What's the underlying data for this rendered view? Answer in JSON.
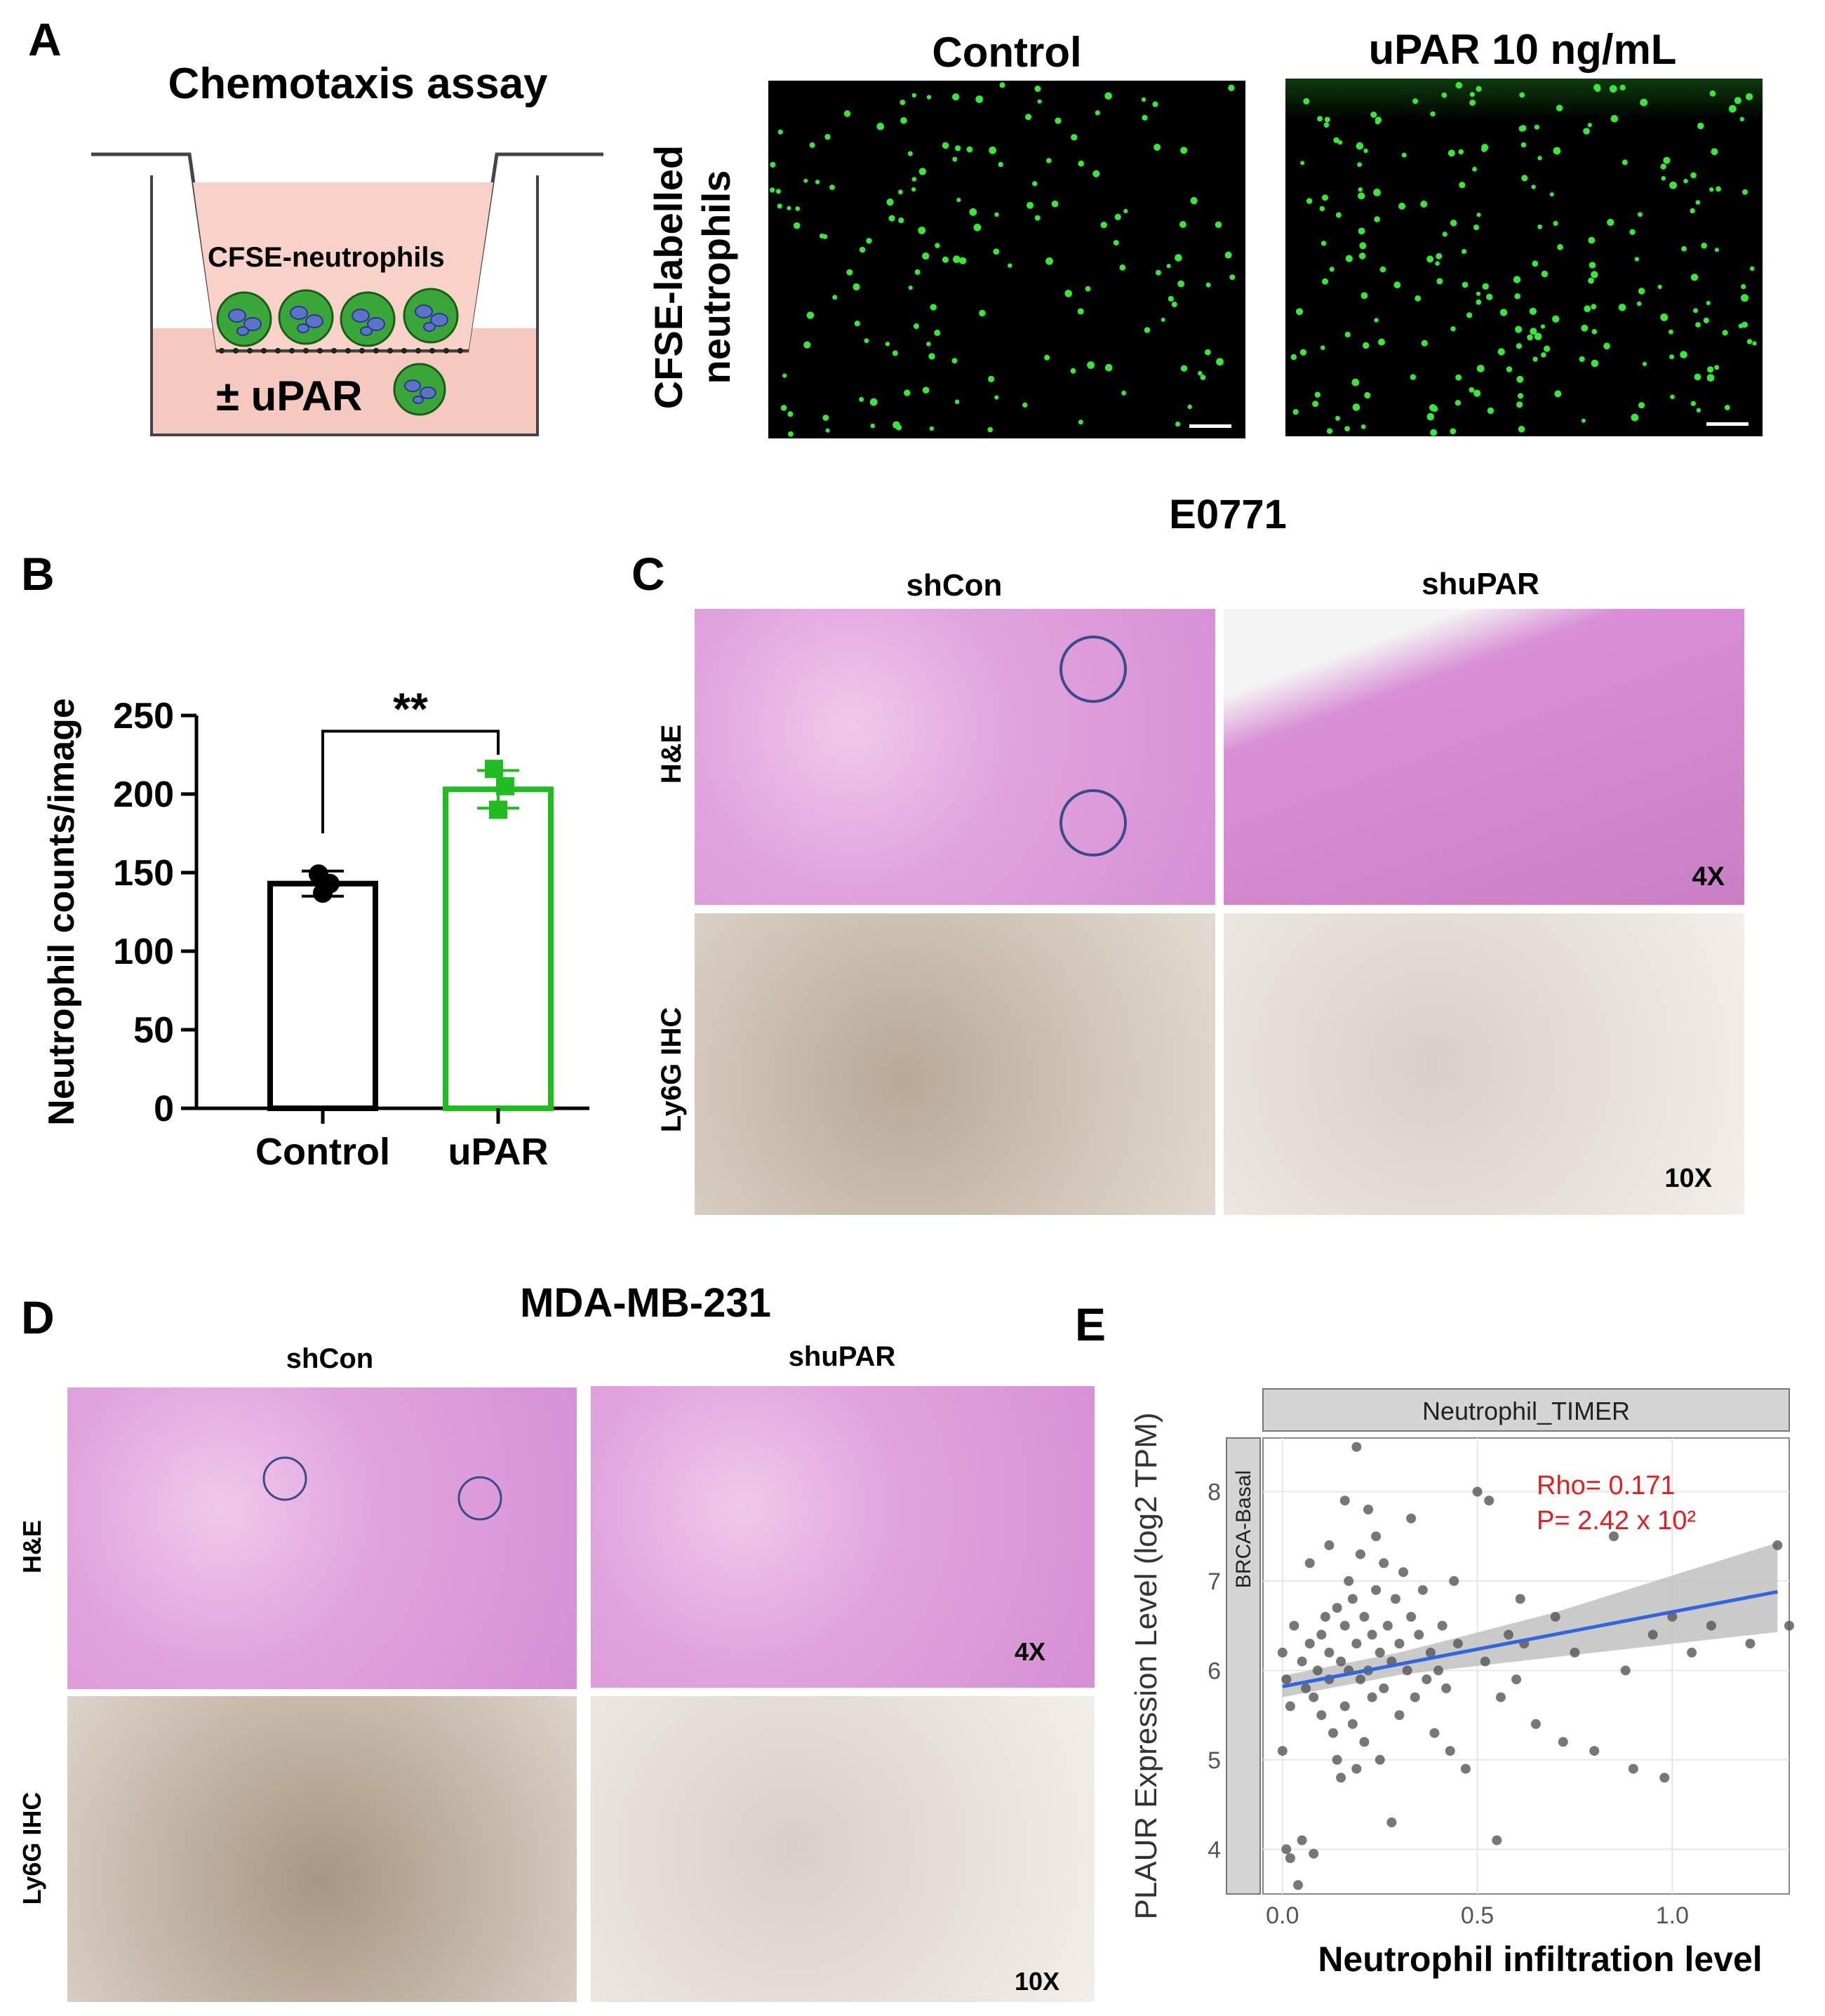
{
  "panels": {
    "A": {
      "label": "A",
      "diagram_title": "Chemotaxis assay",
      "insert_label": "CFSE-neutrophils",
      "chamber_label": "± uPAR",
      "row_label_line1": "CFSE-labelled",
      "row_label_line2": "neutrophils",
      "col_control": "Control",
      "col_upar": "uPAR 10 ng/mL",
      "colors": {
        "cell_fill": "#3aa63a",
        "nucleus": "#5b73c8",
        "chamber": "#f6c9c0",
        "dot": "#39e639"
      }
    },
    "B": {
      "label": "B",
      "significance": "**"
    },
    "C": {
      "label": "C",
      "title": "E0771",
      "col_shcon": "shCon",
      "col_shupar": "shuPAR",
      "row_he": "H&E",
      "row_ihc": "Ly6G IHC",
      "mag_4x": "4X",
      "mag_10x": "10X"
    },
    "D": {
      "label": "D",
      "title": "MDA-MB-231",
      "col_shcon": "shCon",
      "col_shupar": "shuPAR",
      "row_he": "H&E",
      "row_ihc": "Ly6G IHC",
      "mag_4x": "4X",
      "mag_10x": "10X"
    },
    "E": {
      "label": "E",
      "strip_top": "Neutrophil_TIMER",
      "strip_side": "BRCA-Basal",
      "rho_text": "Rho= 0.171",
      "p_text": "P= 2.42 x 10²"
    }
  },
  "chart_data": [
    {
      "type": "bar",
      "categories": [
        "Control",
        "uPAR"
      ],
      "values": [
        143,
        203
      ],
      "error": [
        8,
        12
      ],
      "points": [
        [
          149,
          143,
          137
        ],
        [
          216,
          205,
          190
        ]
      ],
      "ylabel": "Neutrophil counts/image",
      "xlabel": "",
      "ylim": [
        0,
        250
      ],
      "yticks": [
        0,
        50,
        100,
        150,
        200,
        250
      ],
      "colors": [
        "#000000",
        "#22bb22"
      ]
    },
    {
      "type": "scatter",
      "xlabel": "Neutrophil infiltration level",
      "ylabel": "PLAUR Expression Level (log2 TPM)",
      "xlim": [
        -0.05,
        1.3
      ],
      "ylim": [
        3.5,
        8.6
      ],
      "xticks": [
        0.0,
        0.5,
        1.0
      ],
      "xtick_labels": [
        "0.0",
        "0.5",
        "1.0"
      ],
      "yticks": [
        4,
        5,
        6,
        7,
        8
      ],
      "fit": {
        "x": [
          0.0,
          1.27
        ],
        "y": [
          5.82,
          6.88
        ]
      },
      "grid": true,
      "colors": {
        "points": "#555555",
        "fit": "#3366dd",
        "band": "#bdbdbd"
      },
      "points": [
        [
          0.0,
          6.2
        ],
        [
          0.01,
          5.9
        ],
        [
          0.02,
          5.6
        ],
        [
          0.0,
          5.1
        ],
        [
          0.01,
          4.0
        ],
        [
          0.02,
          3.9
        ],
        [
          0.04,
          3.6
        ],
        [
          0.05,
          4.1
        ],
        [
          0.08,
          3.95
        ],
        [
          0.03,
          6.5
        ],
        [
          0.05,
          6.1
        ],
        [
          0.06,
          5.8
        ],
        [
          0.07,
          6.3
        ],
        [
          0.08,
          5.7
        ],
        [
          0.09,
          6.0
        ],
        [
          0.1,
          6.4
        ],
        [
          0.1,
          5.5
        ],
        [
          0.11,
          6.6
        ],
        [
          0.12,
          5.9
        ],
        [
          0.12,
          6.2
        ],
        [
          0.13,
          5.3
        ],
        [
          0.14,
          6.7
        ],
        [
          0.14,
          5.0
        ],
        [
          0.15,
          6.1
        ],
        [
          0.15,
          4.8
        ],
        [
          0.16,
          6.5
        ],
        [
          0.16,
          5.6
        ],
        [
          0.17,
          7.0
        ],
        [
          0.17,
          6.0
        ],
        [
          0.18,
          6.8
        ],
        [
          0.18,
          5.4
        ],
        [
          0.19,
          6.3
        ],
        [
          0.19,
          4.9
        ],
        [
          0.2,
          7.3
        ],
        [
          0.2,
          5.9
        ],
        [
          0.21,
          6.6
        ],
        [
          0.21,
          5.2
        ],
        [
          0.22,
          6.0
        ],
        [
          0.22,
          7.8
        ],
        [
          0.23,
          6.4
        ],
        [
          0.23,
          5.7
        ],
        [
          0.24,
          6.9
        ],
        [
          0.25,
          6.2
        ],
        [
          0.25,
          5.0
        ],
        [
          0.26,
          7.2
        ],
        [
          0.26,
          5.8
        ],
        [
          0.27,
          6.5
        ],
        [
          0.28,
          6.1
        ],
        [
          0.28,
          4.3
        ],
        [
          0.29,
          6.8
        ],
        [
          0.3,
          6.3
        ],
        [
          0.3,
          5.5
        ],
        [
          0.31,
          7.1
        ],
        [
          0.32,
          6.0
        ],
        [
          0.33,
          6.6
        ],
        [
          0.34,
          5.7
        ],
        [
          0.35,
          6.4
        ],
        [
          0.36,
          6.9
        ],
        [
          0.37,
          5.9
        ],
        [
          0.38,
          6.2
        ],
        [
          0.39,
          5.3
        ],
        [
          0.4,
          6.0
        ],
        [
          0.41,
          6.5
        ],
        [
          0.42,
          5.8
        ],
        [
          0.43,
          5.1
        ],
        [
          0.45,
          6.3
        ],
        [
          0.47,
          4.9
        ],
        [
          0.5,
          8.0
        ],
        [
          0.52,
          6.1
        ],
        [
          0.55,
          4.1
        ],
        [
          0.56,
          5.7
        ],
        [
          0.58,
          6.4
        ],
        [
          0.6,
          5.9
        ],
        [
          0.62,
          6.3
        ],
        [
          0.65,
          5.4
        ],
        [
          0.7,
          6.6
        ],
        [
          0.72,
          5.2
        ],
        [
          0.75,
          6.2
        ],
        [
          0.8,
          5.1
        ],
        [
          0.85,
          7.5
        ],
        [
          0.88,
          6.0
        ],
        [
          0.9,
          4.9
        ],
        [
          0.95,
          6.4
        ],
        [
          0.98,
          4.8
        ],
        [
          1.0,
          6.6
        ],
        [
          1.05,
          6.2
        ],
        [
          1.1,
          6.5
        ],
        [
          1.2,
          6.3
        ],
        [
          1.27,
          7.4
        ],
        [
          1.3,
          6.5
        ],
        [
          0.19,
          8.5
        ],
        [
          0.16,
          7.9
        ],
        [
          0.24,
          7.5
        ],
        [
          0.33,
          7.7
        ],
        [
          0.12,
          7.4
        ],
        [
          0.07,
          7.2
        ],
        [
          0.44,
          7.0
        ],
        [
          0.53,
          7.9
        ],
        [
          0.61,
          6.8
        ]
      ]
    }
  ]
}
